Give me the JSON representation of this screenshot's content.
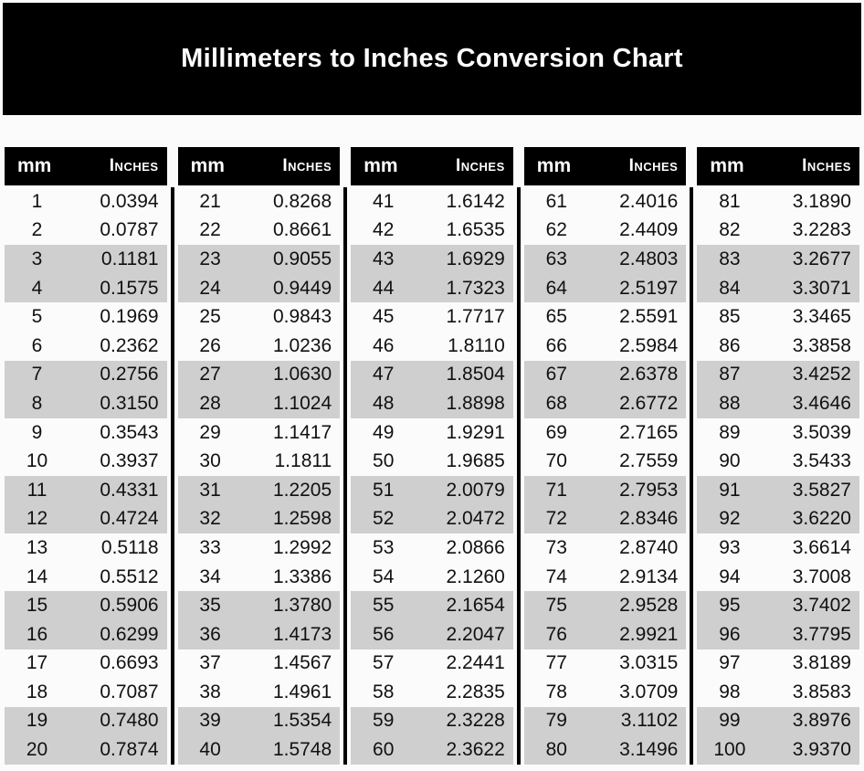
{
  "colors": {
    "page_bg": "#fbfbfb",
    "banner_bg": "#000000",
    "banner_text": "#ffffff",
    "header_bg": "#000000",
    "header_text": "#ffffff",
    "stripe": "#cfcfcf",
    "body_text": "#111111",
    "divider": "#000000"
  },
  "chart_data": {
    "type": "table",
    "title": "Millimeters to Inches Conversion Chart",
    "column_headers": {
      "mm": "mm",
      "inches": "Inches"
    },
    "row_shading": "alternating pairs of rows shaded gray (rows 3-4, 7-8, 11-12, 15-16, 19-20 of each table)",
    "tables": [
      {
        "rows": [
          [
            1,
            "0.0394"
          ],
          [
            2,
            "0.0787"
          ],
          [
            3,
            "0.1181"
          ],
          [
            4,
            "0.1575"
          ],
          [
            5,
            "0.1969"
          ],
          [
            6,
            "0.2362"
          ],
          [
            7,
            "0.2756"
          ],
          [
            8,
            "0.3150"
          ],
          [
            9,
            "0.3543"
          ],
          [
            10,
            "0.3937"
          ],
          [
            11,
            "0.4331"
          ],
          [
            12,
            "0.4724"
          ],
          [
            13,
            "0.5118"
          ],
          [
            14,
            "0.5512"
          ],
          [
            15,
            "0.5906"
          ],
          [
            16,
            "0.6299"
          ],
          [
            17,
            "0.6693"
          ],
          [
            18,
            "0.7087"
          ],
          [
            19,
            "0.7480"
          ],
          [
            20,
            "0.7874"
          ]
        ]
      },
      {
        "rows": [
          [
            21,
            "0.8268"
          ],
          [
            22,
            "0.8661"
          ],
          [
            23,
            "0.9055"
          ],
          [
            24,
            "0.9449"
          ],
          [
            25,
            "0.9843"
          ],
          [
            26,
            "1.0236"
          ],
          [
            27,
            "1.0630"
          ],
          [
            28,
            "1.1024"
          ],
          [
            29,
            "1.1417"
          ],
          [
            30,
            "1.1811"
          ],
          [
            31,
            "1.2205"
          ],
          [
            32,
            "1.2598"
          ],
          [
            33,
            "1.2992"
          ],
          [
            34,
            "1.3386"
          ],
          [
            35,
            "1.3780"
          ],
          [
            36,
            "1.4173"
          ],
          [
            37,
            "1.4567"
          ],
          [
            38,
            "1.4961"
          ],
          [
            39,
            "1.5354"
          ],
          [
            40,
            "1.5748"
          ]
        ]
      },
      {
        "rows": [
          [
            41,
            "1.6142"
          ],
          [
            42,
            "1.6535"
          ],
          [
            43,
            "1.6929"
          ],
          [
            44,
            "1.7323"
          ],
          [
            45,
            "1.7717"
          ],
          [
            46,
            "1.8110"
          ],
          [
            47,
            "1.8504"
          ],
          [
            48,
            "1.8898"
          ],
          [
            49,
            "1.9291"
          ],
          [
            50,
            "1.9685"
          ],
          [
            51,
            "2.0079"
          ],
          [
            52,
            "2.0472"
          ],
          [
            53,
            "2.0866"
          ],
          [
            54,
            "2.1260"
          ],
          [
            55,
            "2.1654"
          ],
          [
            56,
            "2.2047"
          ],
          [
            57,
            "2.2441"
          ],
          [
            58,
            "2.2835"
          ],
          [
            59,
            "2.3228"
          ],
          [
            60,
            "2.3622"
          ]
        ]
      },
      {
        "rows": [
          [
            61,
            "2.4016"
          ],
          [
            62,
            "2.4409"
          ],
          [
            63,
            "2.4803"
          ],
          [
            64,
            "2.5197"
          ],
          [
            65,
            "2.5591"
          ],
          [
            66,
            "2.5984"
          ],
          [
            67,
            "2.6378"
          ],
          [
            68,
            "2.6772"
          ],
          [
            69,
            "2.7165"
          ],
          [
            70,
            "2.7559"
          ],
          [
            71,
            "2.7953"
          ],
          [
            72,
            "2.8346"
          ],
          [
            73,
            "2.8740"
          ],
          [
            74,
            "2.9134"
          ],
          [
            75,
            "2.9528"
          ],
          [
            76,
            "2.9921"
          ],
          [
            77,
            "3.0315"
          ],
          [
            78,
            "3.0709"
          ],
          [
            79,
            "3.1102"
          ],
          [
            80,
            "3.1496"
          ]
        ]
      },
      {
        "rows": [
          [
            81,
            "3.1890"
          ],
          [
            82,
            "3.2283"
          ],
          [
            83,
            "3.2677"
          ],
          [
            84,
            "3.3071"
          ],
          [
            85,
            "3.3465"
          ],
          [
            86,
            "3.3858"
          ],
          [
            87,
            "3.4252"
          ],
          [
            88,
            "3.4646"
          ],
          [
            89,
            "3.5039"
          ],
          [
            90,
            "3.5433"
          ],
          [
            91,
            "3.5827"
          ],
          [
            92,
            "3.6220"
          ],
          [
            93,
            "3.6614"
          ],
          [
            94,
            "3.7008"
          ],
          [
            95,
            "3.7402"
          ],
          [
            96,
            "3.7795"
          ],
          [
            97,
            "3.8189"
          ],
          [
            98,
            "3.8583"
          ],
          [
            99,
            "3.8976"
          ],
          [
            100,
            "3.9370"
          ]
        ]
      }
    ]
  }
}
